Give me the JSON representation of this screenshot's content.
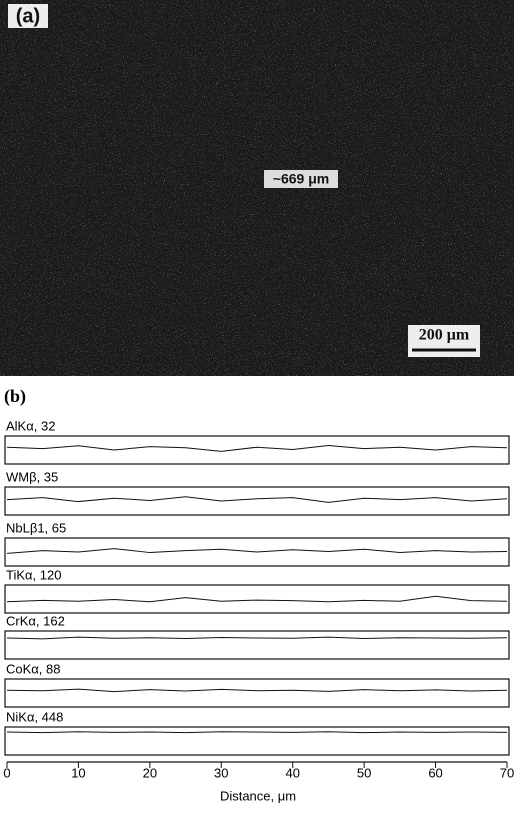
{
  "panel_a": {
    "label": "(a)",
    "annotation": "~669 μm",
    "scale_bar": "200 μm"
  },
  "chart_data": {
    "type": "line",
    "label": "(b)",
    "xlabel": "Distance, μm",
    "xlim": [
      0,
      70
    ],
    "xticks": [
      0,
      10,
      20,
      30,
      40,
      50,
      60,
      70
    ],
    "ylim": [
      0,
      100
    ],
    "x": [
      0,
      5,
      10,
      15,
      20,
      25,
      30,
      35,
      40,
      45,
      50,
      55,
      60,
      65,
      70
    ],
    "series": [
      {
        "name": "AlKα, 32",
        "color": "#111",
        "values": [
          60,
          55,
          65,
          50,
          62,
          58,
          45,
          60,
          52,
          66,
          55,
          60,
          50,
          62,
          58
        ]
      },
      {
        "name": "WMβ, 35",
        "color": "#111",
        "values": [
          55,
          62,
          48,
          60,
          52,
          65,
          50,
          58,
          62,
          45,
          60,
          55,
          62,
          50,
          58
        ]
      },
      {
        "name": "NbLβ1, 65",
        "color": "#111",
        "values": [
          45,
          55,
          50,
          62,
          48,
          55,
          60,
          50,
          58,
          52,
          60,
          48,
          55,
          50,
          52
        ]
      },
      {
        "name": "TiKα, 120",
        "color": "#111",
        "values": [
          40,
          45,
          42,
          48,
          40,
          55,
          42,
          46,
          44,
          40,
          45,
          42,
          60,
          44,
          42
        ]
      },
      {
        "name": "CrKα, 162",
        "color": "#111",
        "values": [
          75,
          72,
          78,
          74,
          76,
          73,
          77,
          75,
          74,
          78,
          73,
          76,
          75,
          74,
          76
        ]
      },
      {
        "name": "CoKα, 88",
        "color": "#111",
        "values": [
          60,
          58,
          64,
          55,
          62,
          57,
          63,
          58,
          60,
          56,
          62,
          58,
          61,
          57,
          60
        ]
      },
      {
        "name": "NiKα, 448",
        "color": "#111",
        "values": [
          82,
          80,
          83,
          81,
          82,
          80,
          83,
          82,
          81,
          83,
          80,
          82,
          81,
          82,
          81
        ]
      }
    ]
  }
}
